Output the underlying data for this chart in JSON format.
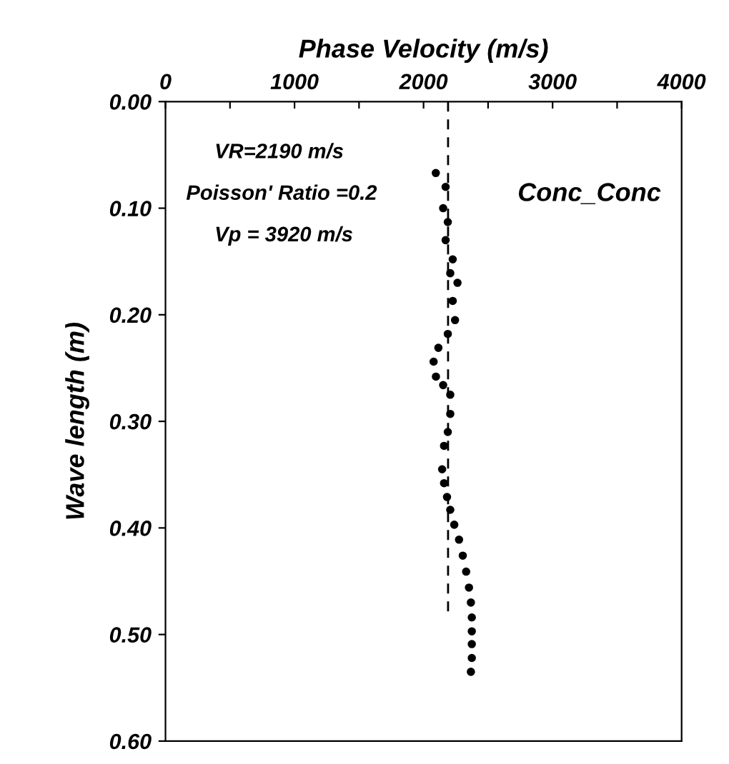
{
  "chart_data": {
    "type": "scatter",
    "xlabel": "Phase Velocity (m/s)",
    "ylabel": "Wave length (m)",
    "xlim": [
      0,
      4000
    ],
    "ylim": [
      0.6,
      0.0
    ],
    "xticks": [
      0,
      {
        "value": 500,
        "label": null
      },
      1000,
      {
        "value": 1500,
        "label": null
      },
      2000,
      {
        "value": 2500,
        "label": null
      },
      3000,
      {
        "value": 3500,
        "label": null
      },
      4000
    ],
    "yticks": [
      {
        "value": 0.0,
        "label": "0.00"
      },
      {
        "value": 0.1,
        "label": "0.10"
      },
      {
        "value": 0.2,
        "label": "0.20"
      },
      {
        "value": 0.3,
        "label": "0.30"
      },
      {
        "value": 0.4,
        "label": "0.40"
      },
      {
        "value": 0.5,
        "label": "0.50"
      },
      {
        "value": 0.6,
        "label": "0.60"
      }
    ],
    "grid": false,
    "legend": false,
    "series": [
      {
        "type": "line",
        "color": "#000000",
        "line_style": "dashed",
        "marker": "none",
        "x": [
          2190,
          2190
        ],
        "values": [
          0.0,
          0.48
        ]
      },
      {
        "color": "#000000",
        "marker": "circle",
        "x": [
          2095,
          2171,
          2152,
          2188,
          2171,
          2226,
          2207,
          2263,
          2226,
          2244,
          2188,
          2115,
          2078,
          2096,
          2152,
          2207,
          2207,
          2188,
          2159,
          2144,
          2159,
          2182,
          2207,
          2238,
          2275,
          2304,
          2330,
          2352,
          2367,
          2374,
          2374,
          2374,
          2374,
          2367
        ],
        "values": [
          0.067,
          0.08,
          0.1,
          0.113,
          0.13,
          0.148,
          0.161,
          0.17,
          0.187,
          0.205,
          0.218,
          0.231,
          0.244,
          0.258,
          0.266,
          0.275,
          0.293,
          0.31,
          0.323,
          0.345,
          0.358,
          0.371,
          0.383,
          0.397,
          0.411,
          0.426,
          0.441,
          0.456,
          0.47,
          0.484,
          0.497,
          0.509,
          0.522,
          0.535
        ]
      }
    ],
    "annotations": [
      "VR=2190 m/s",
      "Poisson' Ratio =0.2",
      "Vp = 3920 m/s",
      "Conc_Conc"
    ]
  }
}
